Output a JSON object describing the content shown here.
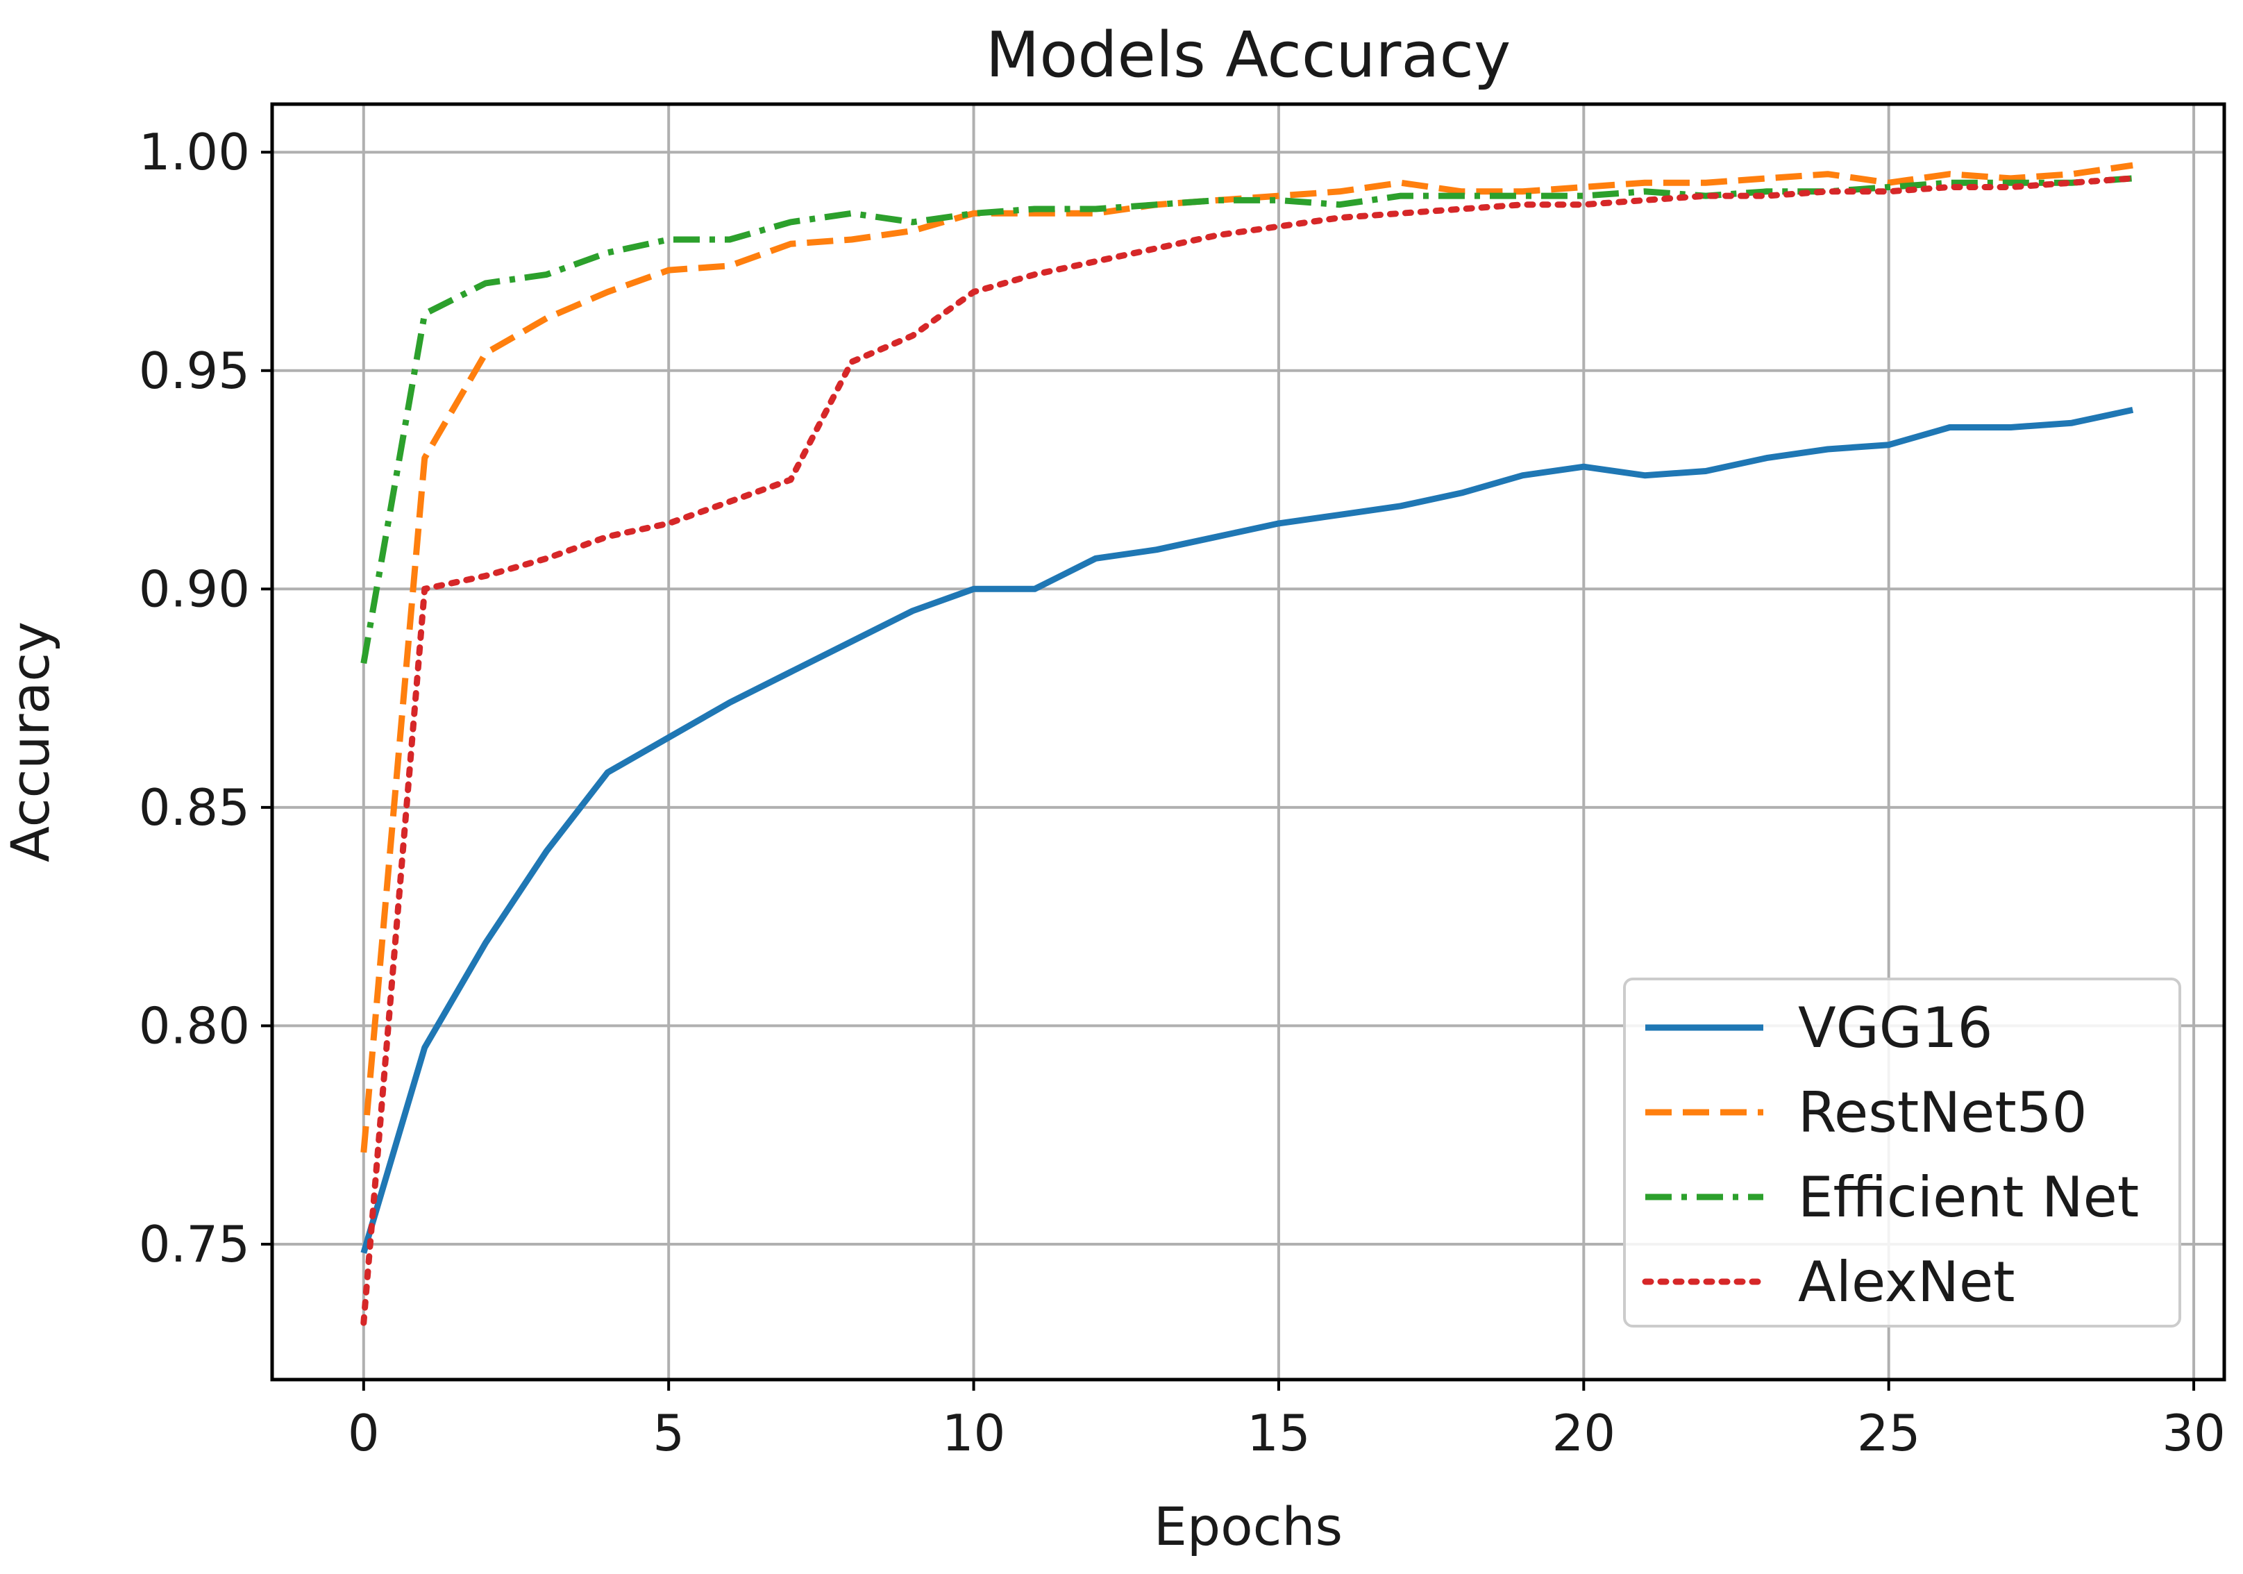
{
  "chart_data": {
    "type": "line",
    "title": "Models Accuracy",
    "xlabel": "Epochs",
    "ylabel": "Accuracy",
    "xlim": [
      -1.5,
      30.5
    ],
    "ylim": [
      0.719,
      1.011
    ],
    "xticks": [
      0,
      5,
      10,
      15,
      20,
      25,
      30
    ],
    "xtick_labels": [
      "0",
      "5",
      "10",
      "15",
      "20",
      "25",
      "30"
    ],
    "yticks": [
      0.75,
      0.8,
      0.85,
      0.9,
      0.95,
      1.0
    ],
    "ytick_labels": [
      "0.75",
      "0.80",
      "0.85",
      "0.90",
      "0.95",
      "1.00"
    ],
    "grid": true,
    "legend_position": "lower-right",
    "x": [
      0,
      1,
      2,
      3,
      4,
      5,
      6,
      7,
      8,
      9,
      10,
      11,
      12,
      13,
      14,
      15,
      16,
      17,
      18,
      19,
      20,
      21,
      22,
      23,
      24,
      25,
      26,
      27,
      28,
      29
    ],
    "series": [
      {
        "name": "VGG16",
        "color": "#1f77b4",
        "style": "solid",
        "values": [
          0.748,
          0.795,
          0.819,
          0.84,
          0.858,
          0.866,
          0.874,
          0.881,
          0.888,
          0.895,
          0.9,
          0.9,
          0.907,
          0.909,
          0.912,
          0.915,
          0.917,
          0.919,
          0.922,
          0.926,
          0.928,
          0.926,
          0.927,
          0.93,
          0.932,
          0.933,
          0.937,
          0.937,
          0.938,
          0.941
        ]
      },
      {
        "name": "RestNet50",
        "color": "#ff7f0e",
        "style": "dashed",
        "values": [
          0.771,
          0.93,
          0.954,
          0.962,
          0.968,
          0.973,
          0.974,
          0.979,
          0.98,
          0.982,
          0.986,
          0.986,
          0.986,
          0.988,
          0.989,
          0.99,
          0.991,
          0.993,
          0.991,
          0.991,
          0.992,
          0.993,
          0.993,
          0.994,
          0.995,
          0.993,
          0.995,
          0.994,
          0.995,
          0.997
        ]
      },
      {
        "name": "Efficient Net",
        "color": "#2ca02c",
        "style": "dashdot",
        "values": [
          0.883,
          0.963,
          0.97,
          0.972,
          0.977,
          0.98,
          0.98,
          0.984,
          0.986,
          0.984,
          0.986,
          0.987,
          0.987,
          0.988,
          0.989,
          0.989,
          0.988,
          0.99,
          0.99,
          0.99,
          0.99,
          0.991,
          0.99,
          0.991,
          0.991,
          0.992,
          0.993,
          0.993,
          0.993,
          0.994
        ]
      },
      {
        "name": "AlexNet",
        "color": "#d62728",
        "style": "dotted",
        "values": [
          0.732,
          0.9,
          0.903,
          0.907,
          0.912,
          0.915,
          0.92,
          0.925,
          0.952,
          0.958,
          0.968,
          0.972,
          0.975,
          0.978,
          0.981,
          0.983,
          0.985,
          0.986,
          0.987,
          0.988,
          0.988,
          0.989,
          0.99,
          0.99,
          0.991,
          0.991,
          0.992,
          0.992,
          0.993,
          0.994
        ]
      }
    ]
  }
}
